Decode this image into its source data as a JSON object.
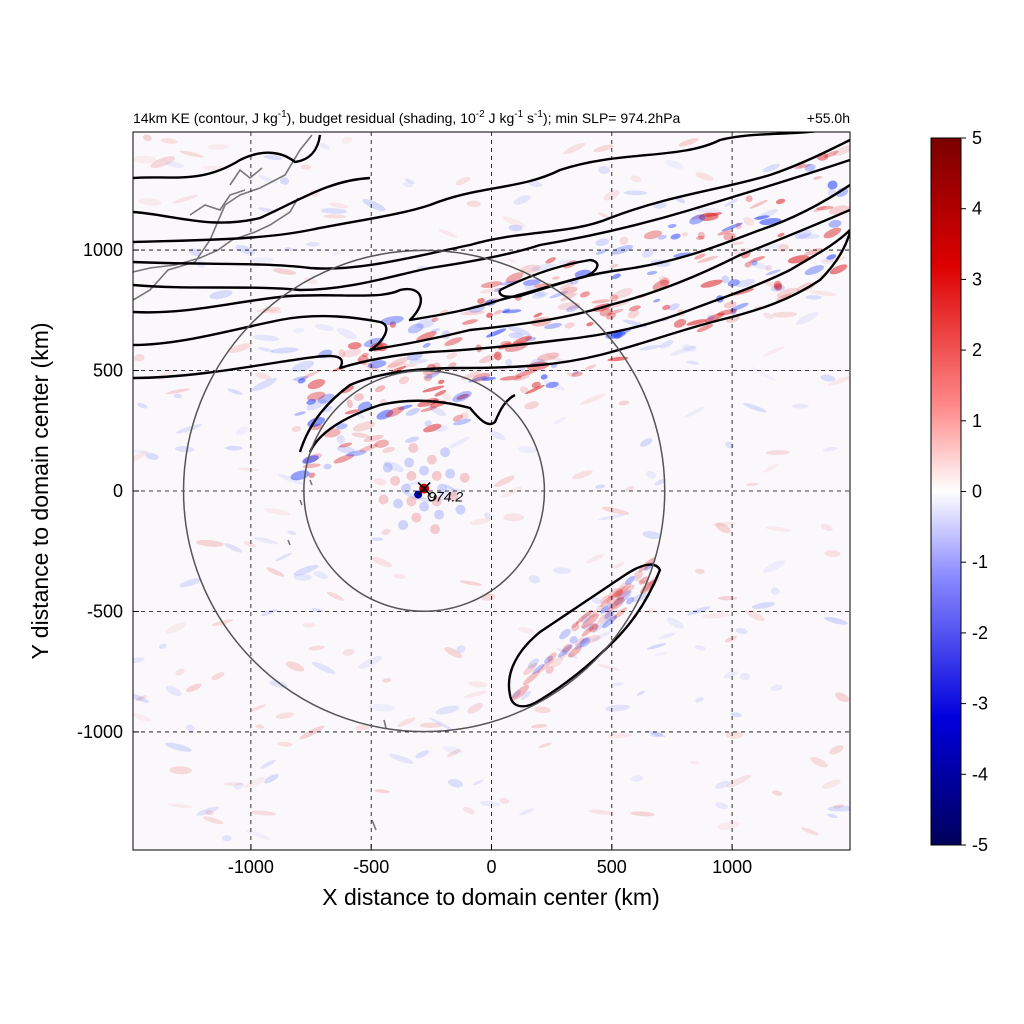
{
  "title_left": "14km KE (contour, J kg-1), budget residual (shading, 10-2 J kg-1 s-1); min SLP= 974.2hPa",
  "title_parts": {
    "a": "14km KE (contour, J kg",
    "b": "-1",
    "c": "), budget residual (shading, 10",
    "d": "-2",
    "e": " J kg",
    "f": "-1",
    "g": " s",
    "h": "-1",
    "i": "); min SLP= 974.2hPa"
  },
  "title_right": "+55.0h",
  "center_marker": {
    "label": "974.2",
    "x": -280,
    "y": 10
  },
  "colors": {
    "positive": "#d7191c",
    "negative": "#1f3dff",
    "contour": "#000000",
    "ring": "#555555",
    "coast": "#777777"
  },
  "chart_data": {
    "type": "heatmap",
    "xlabel": "X distance to domain center (km)",
    "ylabel": "Y distance to domain center (km)",
    "xlim": [
      -1490,
      1490
    ],
    "ylim": [
      -1490,
      1490
    ],
    "xticks": [
      -1000,
      -500,
      0,
      500,
      1000
    ],
    "xtick_labels": [
      "-1000",
      "-500",
      "0",
      "500",
      "1000"
    ],
    "yticks": [
      1000,
      500,
      0,
      -500,
      -1000
    ],
    "ytick_labels": [
      "1000",
      "500",
      "0",
      "-500",
      "-1000"
    ],
    "grid": "dashed",
    "colorbar": {
      "range": [
        -5,
        5
      ],
      "ticks": [
        5,
        4,
        3,
        2,
        1,
        0,
        -1,
        -2,
        -3,
        -4,
        -5
      ],
      "tick_labels": [
        "5",
        "4",
        "3",
        "2",
        "1",
        "0",
        "-1",
        "-2",
        "-3",
        "-4",
        "-5"
      ],
      "colormap": "blue-white-red"
    },
    "rings": [
      {
        "center": [
          -280,
          0
        ],
        "radius": 500
      },
      {
        "center": [
          -280,
          0
        ],
        "radius": 1000
      }
    ],
    "min_slp_hpa": 974.2
  }
}
